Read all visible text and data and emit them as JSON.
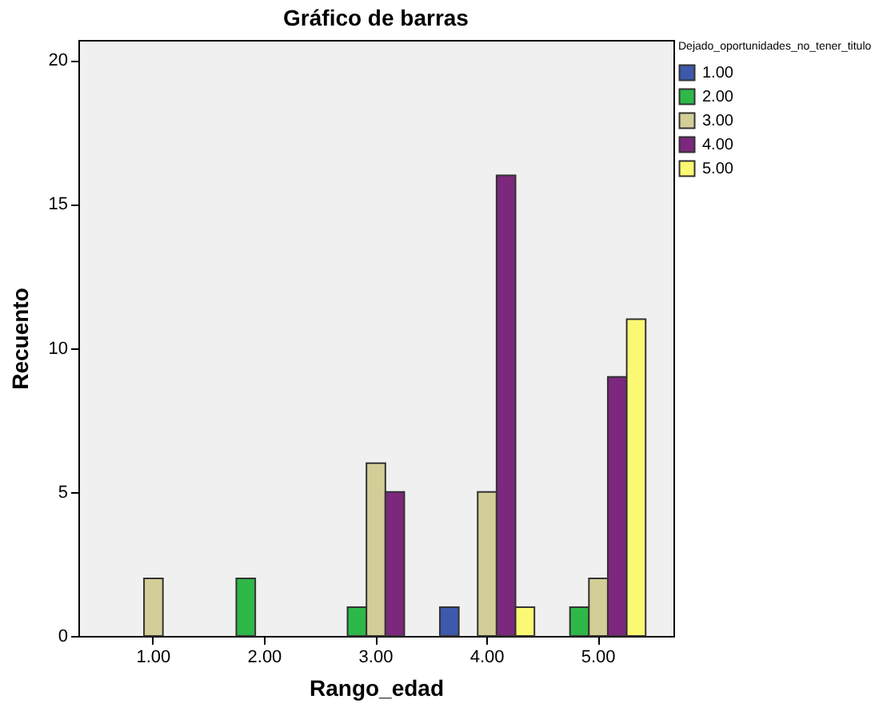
{
  "chart_data": {
    "type": "bar",
    "title": "Gráfico de barras",
    "xlabel": "Rango_edad",
    "ylabel": "Recuento",
    "legend_title": "Dejado_oportunidades_no_tener_titulo",
    "categories": [
      "1.00",
      "2.00",
      "3.00",
      "4.00",
      "5.00"
    ],
    "series": [
      {
        "name": "1.00",
        "color": "#3e58ac",
        "values": [
          null,
          null,
          null,
          1,
          null
        ]
      },
      {
        "name": "2.00",
        "color": "#2eb848",
        "values": [
          null,
          2,
          1,
          null,
          1
        ]
      },
      {
        "name": "3.00",
        "color": "#d3ce97",
        "values": [
          2,
          null,
          6,
          5,
          2
        ]
      },
      {
        "name": "4.00",
        "color": "#7c287d",
        "values": [
          null,
          null,
          5,
          16,
          9
        ]
      },
      {
        "name": "5.00",
        "color": "#fbf873",
        "values": [
          null,
          null,
          null,
          1,
          11
        ]
      }
    ],
    "ylim": [
      0,
      20.7
    ],
    "yticks": [
      0,
      5,
      10,
      15,
      20
    ],
    "grid": false,
    "legend": "top right"
  }
}
